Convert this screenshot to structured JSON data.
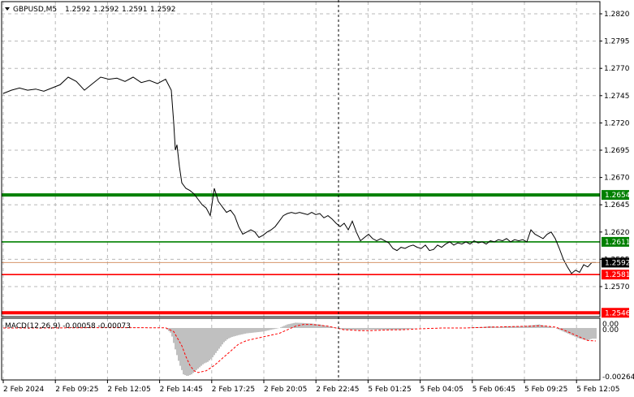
{
  "header": {
    "symbol": "GBPUSD,M5",
    "open": "1.2592",
    "high": "1.2592",
    "low": "1.2591",
    "close": "1.2592"
  },
  "price_axis": {
    "ticks": [
      "1.2820",
      "1.2795",
      "1.2770",
      "1.2745",
      "1.2720",
      "1.2695",
      "1.2670",
      "1.2645",
      "1.2620",
      "1.2595",
      "1.2570"
    ]
  },
  "levels": [
    {
      "label": "1.2654",
      "value": 1.2654,
      "color": "#008000",
      "kind": "thick"
    },
    {
      "label": "1.2611",
      "value": 1.2611,
      "color": "#008000",
      "kind": "thin"
    },
    {
      "label": "1.2581",
      "value": 1.2581,
      "color": "#ff0000",
      "kind": "thin"
    },
    {
      "label": "1.2546",
      "value": 1.2546,
      "color": "#ff0000",
      "kind": "thick"
    }
  ],
  "current_price": {
    "label": "1.2592",
    "value": 1.2592
  },
  "macd": {
    "label": "MACD(12,26,9) -0.00058 -0.00073",
    "ticks": [
      "0.00",
      "0.00",
      "-0.00264"
    ]
  },
  "time_axis": {
    "labels": [
      "2 Feb 2024",
      "2 Feb 09:25",
      "2 Feb 12:05",
      "2 Feb 14:45",
      "2 Feb 17:25",
      "2 Feb 20:05",
      "2 Feb 22:45",
      "5 Feb 01:25",
      "5 Feb 04:05",
      "5 Feb 06:45",
      "5 Feb 09:25",
      "5 Feb 12:05"
    ]
  },
  "chart_data": {
    "type": "line",
    "price": {
      "x": [
        0,
        10,
        20,
        30,
        40,
        50,
        60,
        70,
        80,
        90,
        100,
        110,
        120,
        130,
        140,
        150,
        160,
        170,
        180,
        190,
        200,
        207,
        210,
        212,
        214,
        217,
        220,
        225,
        230,
        235,
        240,
        245,
        250,
        255,
        260,
        265,
        270,
        275,
        280,
        285,
        290,
        295,
        300,
        305,
        310,
        315,
        320,
        325,
        330,
        335,
        340,
        345,
        350,
        355,
        360,
        365,
        370,
        375,
        380,
        385,
        390,
        395,
        400,
        405,
        410,
        415,
        420,
        425,
        430,
        435,
        440,
        445,
        450,
        455,
        460,
        465,
        470,
        475,
        480,
        485,
        490,
        495,
        500,
        505,
        510,
        515,
        520,
        525,
        530,
        535,
        540,
        545,
        550,
        555,
        560,
        565,
        570,
        575,
        580,
        585,
        590,
        595,
        600,
        605,
        610,
        615,
        620,
        625,
        630,
        635,
        640,
        645,
        650,
        655,
        660,
        665,
        670,
        675,
        680,
        685,
        690,
        695,
        700,
        705,
        710,
        715,
        720,
        725,
        730
      ],
      "y": [
        1.2747,
        1.275,
        1.2752,
        1.275,
        1.2751,
        1.2749,
        1.2752,
        1.2755,
        1.2762,
        1.2758,
        1.275,
        1.2756,
        1.2762,
        1.276,
        1.2761,
        1.2758,
        1.2762,
        1.2757,
        1.2759,
        1.2756,
        1.276,
        1.275,
        1.272,
        1.2695,
        1.27,
        1.268,
        1.2665,
        1.266,
        1.2658,
        1.2655,
        1.265,
        1.2645,
        1.2642,
        1.2635,
        1.266,
        1.2648,
        1.2643,
        1.2638,
        1.264,
        1.2635,
        1.2625,
        1.2618,
        1.262,
        1.2622,
        1.262,
        1.2615,
        1.2617,
        1.262,
        1.2622,
        1.2625,
        1.263,
        1.2635,
        1.2637,
        1.2638,
        1.2637,
        1.2638,
        1.2637,
        1.2636,
        1.2638,
        1.2636,
        1.2637,
        1.2633,
        1.2635,
        1.2632,
        1.2628,
        1.2625,
        1.2628,
        1.2622,
        1.263,
        1.262,
        1.2612,
        1.2615,
        1.2618,
        1.2614,
        1.2612,
        1.2614,
        1.2612,
        1.261,
        1.2605,
        1.2603,
        1.2606,
        1.2605,
        1.2607,
        1.2608,
        1.2606,
        1.2605,
        1.2608,
        1.2603,
        1.2604,
        1.2608,
        1.2606,
        1.2609,
        1.2611,
        1.2608,
        1.261,
        1.2609,
        1.2611,
        1.2609,
        1.2612,
        1.261,
        1.2611,
        1.2609,
        1.2612,
        1.2611,
        1.2613,
        1.2612,
        1.2614,
        1.2611,
        1.2613,
        1.2612,
        1.2613,
        1.2611,
        1.2622,
        1.2618,
        1.2616,
        1.2614,
        1.2618,
        1.262,
        1.2614,
        1.2605,
        1.2595,
        1.2588,
        1.2582,
        1.2585,
        1.2583,
        1.259,
        1.2588,
        1.2592,
        1.2592
      ]
    },
    "macd_hist": {
      "x": [
        0,
        20,
        40,
        60,
        80,
        100,
        120,
        140,
        160,
        180,
        200,
        207,
        212,
        217,
        222,
        227,
        232,
        237,
        242,
        247,
        252,
        257,
        262,
        267,
        272,
        277,
        282,
        290,
        300,
        310,
        320,
        330,
        340,
        350,
        360,
        370,
        380,
        390,
        400,
        410,
        420,
        430,
        440,
        450,
        460,
        470,
        480,
        490,
        500,
        510,
        520,
        530,
        540,
        550,
        560,
        570,
        580,
        590,
        600,
        610,
        620,
        630,
        640,
        650,
        660,
        670,
        680,
        690,
        700,
        710,
        720,
        725,
        730
      ],
      "y": [
        0,
        0,
        0,
        0,
        2e-05,
        2e-05,
        3e-05,
        2e-05,
        2e-05,
        1e-05,
        0,
        -0.0003,
        -0.0012,
        -0.002,
        -0.0026,
        -0.0027,
        -0.0026,
        -0.0024,
        -0.0022,
        -0.002,
        -0.0019,
        -0.0017,
        -0.0014,
        -0.0011,
        -0.0008,
        -0.0006,
        -0.0005,
        -0.0004,
        -0.0003,
        -0.00025,
        -0.0002,
        -0.0001,
        0,
        0.0002,
        0.0003,
        0.00028,
        0.00025,
        0.0002,
        0.0001,
        0,
        -0.0001,
        -0.0001,
        -0.00012,
        -0.0001,
        -0.0001,
        -0.0001,
        -0.0001,
        -0.0001,
        -5e-05,
        0,
        0,
        0,
        0,
        0,
        0,
        0,
        5e-05,
        5e-05,
        0.0001,
        5e-05,
        0.0001,
        0.0001,
        0.0001,
        0.00015,
        0.0002,
        0.0001,
        0,
        -0.0002,
        -0.0004,
        -0.0006,
        -0.0007,
        -0.0006,
        -0.0006
      ]
    },
    "macd_signal": {
      "x": [
        0,
        40,
        80,
        120,
        160,
        200,
        210,
        220,
        225,
        230,
        235,
        240,
        250,
        260,
        270,
        280,
        290,
        300,
        310,
        320,
        330,
        340,
        350,
        360,
        370,
        380,
        390,
        400,
        410,
        420,
        430,
        440,
        450,
        460,
        470,
        480,
        490,
        500,
        510,
        520,
        530,
        540,
        550,
        560,
        570,
        580,
        590,
        600,
        610,
        620,
        630,
        640,
        650,
        660,
        670,
        680,
        690,
        700,
        710,
        720,
        730
      ],
      "y": [
        0,
        0,
        1e-05,
        2e-05,
        2e-05,
        1e-05,
        -0.0002,
        -0.001,
        -0.0016,
        -0.0021,
        -0.0024,
        -0.0025,
        -0.0024,
        -0.0021,
        -0.0017,
        -0.0013,
        -0.0009,
        -0.0007,
        -0.0006,
        -0.0005,
        -0.0004,
        -0.0003,
        -0.0001,
        0.0001,
        0.0002,
        0.0002,
        0.00015,
        0.0001,
        0,
        -0.0001,
        -0.00012,
        -0.00015,
        -0.00015,
        -0.00013,
        -0.00012,
        -0.0001,
        -0.0001,
        -8e-05,
        -5e-05,
        -3e-05,
        -2e-05,
        0,
        0,
        0,
        0,
        2e-05,
        3e-05,
        5e-05,
        6e-05,
        7e-05,
        8e-05,
        9e-05,
        0.0001,
        0.00012,
        0.0001,
        5e-05,
        -0.0001,
        -0.0003,
        -0.0005,
        -0.0007,
        -0.00073
      ]
    }
  }
}
